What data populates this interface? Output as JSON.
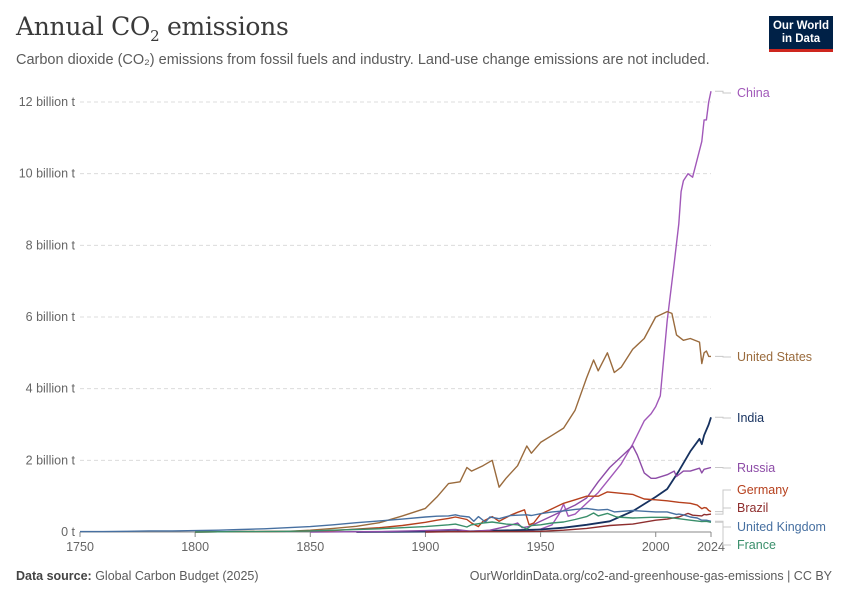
{
  "header": {
    "title_main": "Annual CO",
    "title_sub": "2",
    "title_end": " emissions",
    "subtitle": "Carbon dioxide (CO₂) emissions from fossil fuels and industry. Land-use change emissions are not included."
  },
  "logo": {
    "line1": "Our World",
    "line2": "in Data"
  },
  "footer": {
    "source_label": "Data source:",
    "source_value": " Global Carbon Budget (2025)",
    "url": "OurWorldinData.org/co2-and-greenhouse-gas-emissions",
    "license": " | CC BY"
  },
  "chart_data": {
    "type": "line",
    "unit": "t",
    "x_ticks": [
      "1750",
      "1800",
      "1850",
      "1900",
      "1950",
      "2000",
      "2024"
    ],
    "x_tick_values": [
      1750,
      1800,
      1850,
      1900,
      1950,
      2000,
      2024
    ],
    "y_ticks": [
      "0 t",
      "2 billion t",
      "4 billion t",
      "6 billion t",
      "8 billion t",
      "10 billion t",
      "12 billion t"
    ],
    "y_tick_values": [
      0,
      2,
      4,
      6,
      8,
      10,
      12
    ],
    "xlim": [
      1750,
      2024
    ],
    "ylim": [
      0,
      12
    ],
    "grid": true,
    "legend": "right, inline labels",
    "series": [
      {
        "name": "China",
        "color": "#a158b9",
        "points": [
          [
            1900,
            0.0
          ],
          [
            1910,
            0.01
          ],
          [
            1920,
            0.02
          ],
          [
            1930,
            0.03
          ],
          [
            1940,
            0.05
          ],
          [
            1945,
            0.03
          ],
          [
            1950,
            0.08
          ],
          [
            1955,
            0.2
          ],
          [
            1958,
            0.5
          ],
          [
            1960,
            0.78
          ],
          [
            1962,
            0.44
          ],
          [
            1965,
            0.5
          ],
          [
            1970,
            0.8
          ],
          [
            1975,
            1.1
          ],
          [
            1980,
            1.5
          ],
          [
            1985,
            1.9
          ],
          [
            1990,
            2.45
          ],
          [
            1995,
            3.1
          ],
          [
            1998,
            3.3
          ],
          [
            2000,
            3.5
          ],
          [
            2002,
            3.8
          ],
          [
            2005,
            5.9
          ],
          [
            2008,
            7.5
          ],
          [
            2010,
            8.6
          ],
          [
            2011,
            9.5
          ],
          [
            2012,
            9.8
          ],
          [
            2014,
            10.0
          ],
          [
            2016,
            9.9
          ],
          [
            2018,
            10.4
          ],
          [
            2020,
            10.9
          ],
          [
            2021,
            11.5
          ],
          [
            2022,
            11.5
          ],
          [
            2023,
            12.0
          ],
          [
            2024,
            12.3
          ]
        ]
      },
      {
        "name": "United States",
        "color": "#9a6b3d",
        "points": [
          [
            1800,
            0.0
          ],
          [
            1820,
            0.01
          ],
          [
            1840,
            0.02
          ],
          [
            1850,
            0.05
          ],
          [
            1860,
            0.1
          ],
          [
            1870,
            0.16
          ],
          [
            1880,
            0.26
          ],
          [
            1890,
            0.45
          ],
          [
            1900,
            0.66
          ],
          [
            1905,
            0.98
          ],
          [
            1910,
            1.35
          ],
          [
            1915,
            1.4
          ],
          [
            1918,
            1.8
          ],
          [
            1920,
            1.7
          ],
          [
            1925,
            1.85
          ],
          [
            1929,
            2.0
          ],
          [
            1932,
            1.25
          ],
          [
            1935,
            1.5
          ],
          [
            1940,
            1.85
          ],
          [
            1944,
            2.4
          ],
          [
            1946,
            2.2
          ],
          [
            1950,
            2.5
          ],
          [
            1955,
            2.7
          ],
          [
            1960,
            2.9
          ],
          [
            1965,
            3.4
          ],
          [
            1970,
            4.3
          ],
          [
            1973,
            4.8
          ],
          [
            1975,
            4.5
          ],
          [
            1979,
            5.0
          ],
          [
            1982,
            4.45
          ],
          [
            1985,
            4.6
          ],
          [
            1990,
            5.1
          ],
          [
            1995,
            5.4
          ],
          [
            2000,
            6.0
          ],
          [
            2005,
            6.15
          ],
          [
            2007,
            6.1
          ],
          [
            2009,
            5.5
          ],
          [
            2012,
            5.35
          ],
          [
            2015,
            5.4
          ],
          [
            2019,
            5.3
          ],
          [
            2020,
            4.7
          ],
          [
            2021,
            5.0
          ],
          [
            2022,
            5.05
          ],
          [
            2023,
            4.9
          ],
          [
            2024,
            4.9
          ]
        ]
      },
      {
        "name": "India",
        "color": "#16315f",
        "points": [
          [
            1870,
            0.0
          ],
          [
            1900,
            0.01
          ],
          [
            1920,
            0.02
          ],
          [
            1950,
            0.07
          ],
          [
            1960,
            0.12
          ],
          [
            1970,
            0.2
          ],
          [
            1980,
            0.3
          ],
          [
            1990,
            0.58
          ],
          [
            2000,
            0.98
          ],
          [
            2005,
            1.2
          ],
          [
            2010,
            1.7
          ],
          [
            2015,
            2.25
          ],
          [
            2019,
            2.6
          ],
          [
            2020,
            2.45
          ],
          [
            2021,
            2.7
          ],
          [
            2022,
            2.85
          ],
          [
            2023,
            3.0
          ],
          [
            2024,
            3.2
          ]
        ]
      },
      {
        "name": "Russia",
        "color": "#8d4ca7",
        "points": [
          [
            1850,
            0.0
          ],
          [
            1880,
            0.01
          ],
          [
            1900,
            0.04
          ],
          [
            1913,
            0.07
          ],
          [
            1920,
            0.02
          ],
          [
            1928,
            0.05
          ],
          [
            1935,
            0.15
          ],
          [
            1940,
            0.25
          ],
          [
            1942,
            0.12
          ],
          [
            1945,
            0.15
          ],
          [
            1950,
            0.3
          ],
          [
            1955,
            0.45
          ],
          [
            1960,
            0.6
          ],
          [
            1965,
            0.75
          ],
          [
            1970,
            0.95
          ],
          [
            1975,
            1.4
          ],
          [
            1980,
            1.8
          ],
          [
            1985,
            2.1
          ],
          [
            1990,
            2.4
          ],
          [
            1992,
            2.15
          ],
          [
            1995,
            1.65
          ],
          [
            1998,
            1.5
          ],
          [
            2000,
            1.5
          ],
          [
            2005,
            1.6
          ],
          [
            2008,
            1.7
          ],
          [
            2009,
            1.55
          ],
          [
            2012,
            1.7
          ],
          [
            2015,
            1.7
          ],
          [
            2019,
            1.78
          ],
          [
            2020,
            1.65
          ],
          [
            2021,
            1.75
          ],
          [
            2024,
            1.8
          ]
        ]
      },
      {
        "name": "Germany",
        "color": "#b6401d",
        "points": [
          [
            1800,
            0.0
          ],
          [
            1820,
            0.01
          ],
          [
            1840,
            0.02
          ],
          [
            1850,
            0.03
          ],
          [
            1860,
            0.04
          ],
          [
            1870,
            0.08
          ],
          [
            1880,
            0.12
          ],
          [
            1890,
            0.18
          ],
          [
            1900,
            0.27
          ],
          [
            1905,
            0.33
          ],
          [
            1910,
            0.38
          ],
          [
            1913,
            0.42
          ],
          [
            1918,
            0.35
          ],
          [
            1920,
            0.25
          ],
          [
            1923,
            0.15
          ],
          [
            1925,
            0.3
          ],
          [
            1929,
            0.43
          ],
          [
            1932,
            0.3
          ],
          [
            1937,
            0.47
          ],
          [
            1940,
            0.55
          ],
          [
            1943,
            0.62
          ],
          [
            1945,
            0.2
          ],
          [
            1947,
            0.25
          ],
          [
            1950,
            0.5
          ],
          [
            1955,
            0.65
          ],
          [
            1960,
            0.8
          ],
          [
            1965,
            0.9
          ],
          [
            1970,
            1.0
          ],
          [
            1975,
            1.0
          ],
          [
            1979,
            1.12
          ],
          [
            1985,
            1.08
          ],
          [
            1990,
            1.05
          ],
          [
            1995,
            0.92
          ],
          [
            2000,
            0.9
          ],
          [
            2005,
            0.87
          ],
          [
            2010,
            0.83
          ],
          [
            2015,
            0.8
          ],
          [
            2018,
            0.75
          ],
          [
            2020,
            0.65
          ],
          [
            2021,
            0.68
          ],
          [
            2022,
            0.67
          ],
          [
            2023,
            0.6
          ],
          [
            2024,
            0.57
          ]
        ]
      },
      {
        "name": "Brazil",
        "color": "#8e2e2e",
        "points": [
          [
            1900,
            0.0
          ],
          [
            1920,
            0.01
          ],
          [
            1940,
            0.01
          ],
          [
            1950,
            0.02
          ],
          [
            1960,
            0.05
          ],
          [
            1970,
            0.1
          ],
          [
            1980,
            0.18
          ],
          [
            1990,
            0.22
          ],
          [
            2000,
            0.33
          ],
          [
            2005,
            0.36
          ],
          [
            2010,
            0.42
          ],
          [
            2014,
            0.52
          ],
          [
            2016,
            0.47
          ],
          [
            2020,
            0.45
          ],
          [
            2021,
            0.49
          ],
          [
            2022,
            0.48
          ],
          [
            2024,
            0.5
          ]
        ]
      },
      {
        "name": "United Kingdom",
        "color": "#4770a1",
        "points": [
          [
            1750,
            0.01
          ],
          [
            1760,
            0.01
          ],
          [
            1770,
            0.02
          ],
          [
            1780,
            0.03
          ],
          [
            1790,
            0.03
          ],
          [
            1800,
            0.04
          ],
          [
            1810,
            0.05
          ],
          [
            1820,
            0.07
          ],
          [
            1830,
            0.09
          ],
          [
            1840,
            0.12
          ],
          [
            1850,
            0.15
          ],
          [
            1860,
            0.2
          ],
          [
            1870,
            0.26
          ],
          [
            1880,
            0.31
          ],
          [
            1890,
            0.36
          ],
          [
            1900,
            0.42
          ],
          [
            1905,
            0.44
          ],
          [
            1910,
            0.45
          ],
          [
            1913,
            0.48
          ],
          [
            1915,
            0.45
          ],
          [
            1919,
            0.42
          ],
          [
            1921,
            0.3
          ],
          [
            1923,
            0.43
          ],
          [
            1926,
            0.28
          ],
          [
            1928,
            0.42
          ],
          [
            1932,
            0.37
          ],
          [
            1937,
            0.46
          ],
          [
            1940,
            0.47
          ],
          [
            1944,
            0.48
          ],
          [
            1946,
            0.46
          ],
          [
            1950,
            0.51
          ],
          [
            1955,
            0.56
          ],
          [
            1960,
            0.59
          ],
          [
            1965,
            0.63
          ],
          [
            1970,
            0.66
          ],
          [
            1975,
            0.61
          ],
          [
            1979,
            0.63
          ],
          [
            1982,
            0.56
          ],
          [
            1990,
            0.6
          ],
          [
            2000,
            0.56
          ],
          [
            2005,
            0.56
          ],
          [
            2009,
            0.49
          ],
          [
            2010,
            0.5
          ],
          [
            2012,
            0.48
          ],
          [
            2015,
            0.42
          ],
          [
            2018,
            0.39
          ],
          [
            2020,
            0.33
          ],
          [
            2022,
            0.33
          ],
          [
            2024,
            0.3
          ]
        ]
      },
      {
        "name": "France",
        "color": "#3a8f6b",
        "points": [
          [
            1800,
            0.0
          ],
          [
            1820,
            0.01
          ],
          [
            1840,
            0.02
          ],
          [
            1850,
            0.03
          ],
          [
            1860,
            0.05
          ],
          [
            1870,
            0.07
          ],
          [
            1880,
            0.09
          ],
          [
            1890,
            0.12
          ],
          [
            1900,
            0.15
          ],
          [
            1910,
            0.2
          ],
          [
            1913,
            0.22
          ],
          [
            1918,
            0.14
          ],
          [
            1920,
            0.2
          ],
          [
            1925,
            0.25
          ],
          [
            1929,
            0.28
          ],
          [
            1935,
            0.22
          ],
          [
            1940,
            0.2
          ],
          [
            1944,
            0.08
          ],
          [
            1946,
            0.18
          ],
          [
            1950,
            0.2
          ],
          [
            1955,
            0.25
          ],
          [
            1960,
            0.28
          ],
          [
            1965,
            0.35
          ],
          [
            1970,
            0.43
          ],
          [
            1973,
            0.53
          ],
          [
            1975,
            0.45
          ],
          [
            1979,
            0.52
          ],
          [
            1983,
            0.42
          ],
          [
            1990,
            0.39
          ],
          [
            1998,
            0.41
          ],
          [
            2005,
            0.41
          ],
          [
            2010,
            0.37
          ],
          [
            2015,
            0.33
          ],
          [
            2020,
            0.29
          ],
          [
            2022,
            0.3
          ],
          [
            2024,
            0.27
          ]
        ]
      }
    ]
  }
}
